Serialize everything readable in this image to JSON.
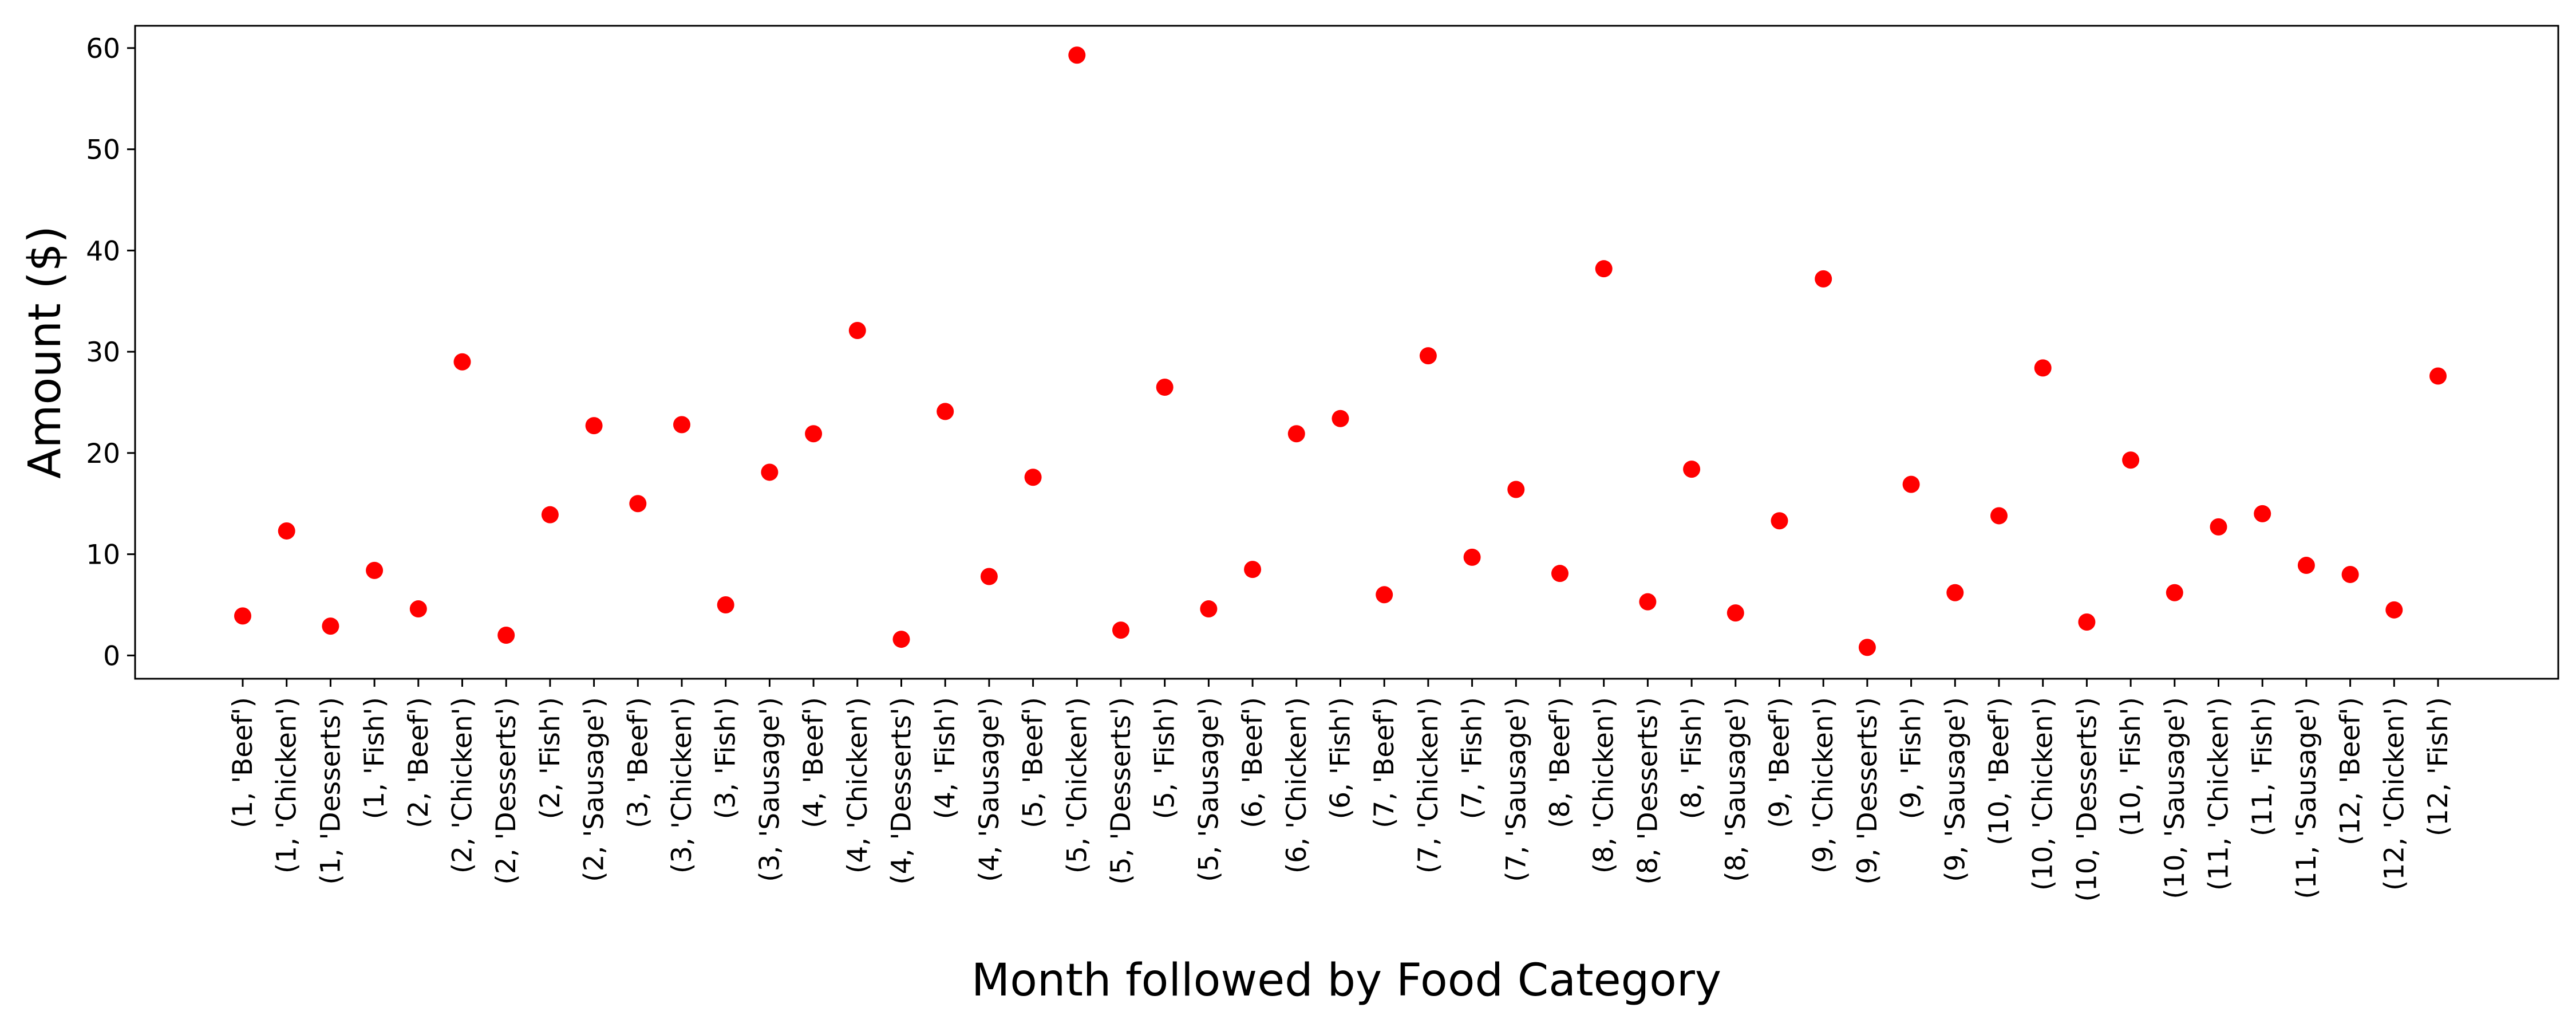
{
  "chart_data": {
    "type": "scatter",
    "title": "",
    "xlabel": "Month followed by Food Category",
    "ylabel": "Amount ($)",
    "ylim": [
      -2.3,
      62.2
    ],
    "yticks": [
      0,
      10,
      20,
      30,
      40,
      50,
      60
    ],
    "grid": false,
    "legend": "none",
    "marker_color": "#ff0000",
    "categories": [
      "(1, 'Beef')",
      "(1, 'Chicken')",
      "(1, 'Desserts')",
      "(1, 'Fish')",
      "(2, 'Beef')",
      "(2, 'Chicken')",
      "(2, 'Desserts')",
      "(2, 'Fish')",
      "(2, 'Sausage')",
      "(3, 'Beef')",
      "(3, 'Chicken')",
      "(3, 'Fish')",
      "(3, 'Sausage')",
      "(4, 'Beef')",
      "(4, 'Chicken')",
      "(4, 'Desserts')",
      "(4, 'Fish')",
      "(4, 'Sausage')",
      "(5, 'Beef')",
      "(5, 'Chicken')",
      "(5, 'Desserts')",
      "(5, 'Fish')",
      "(5, 'Sausage')",
      "(6, 'Beef')",
      "(6, 'Chicken')",
      "(6, 'Fish')",
      "(7, 'Beef')",
      "(7, 'Chicken')",
      "(7, 'Fish')",
      "(7, 'Sausage')",
      "(8, 'Beef')",
      "(8, 'Chicken')",
      "(8, 'Desserts')",
      "(8, 'Fish')",
      "(8, 'Sausage')",
      "(9, 'Beef')",
      "(9, 'Chicken')",
      "(9, 'Desserts')",
      "(9, 'Fish')",
      "(9, 'Sausage')",
      "(10, 'Beef')",
      "(10, 'Chicken')",
      "(10, 'Desserts')",
      "(10, 'Fish')",
      "(10, 'Sausage')",
      "(11, 'Chicken')",
      "(11, 'Fish')",
      "(11, 'Sausage')",
      "(12, 'Beef')",
      "(12, 'Chicken')",
      "(12, 'Fish')"
    ],
    "values": [
      3.9,
      12.3,
      2.9,
      8.4,
      4.6,
      29.0,
      2.0,
      13.9,
      22.7,
      15.0,
      22.8,
      5.0,
      18.1,
      21.9,
      32.1,
      1.6,
      24.1,
      7.8,
      17.6,
      59.3,
      2.5,
      26.5,
      4.6,
      8.5,
      21.9,
      23.4,
      6.0,
      29.6,
      9.7,
      16.4,
      8.1,
      38.2,
      5.3,
      18.4,
      4.2,
      13.3,
      37.2,
      0.8,
      16.9,
      6.2,
      13.8,
      28.4,
      3.3,
      19.3,
      6.2,
      12.7,
      14.0,
      8.9,
      8.0,
      4.5,
      27.6
    ]
  }
}
